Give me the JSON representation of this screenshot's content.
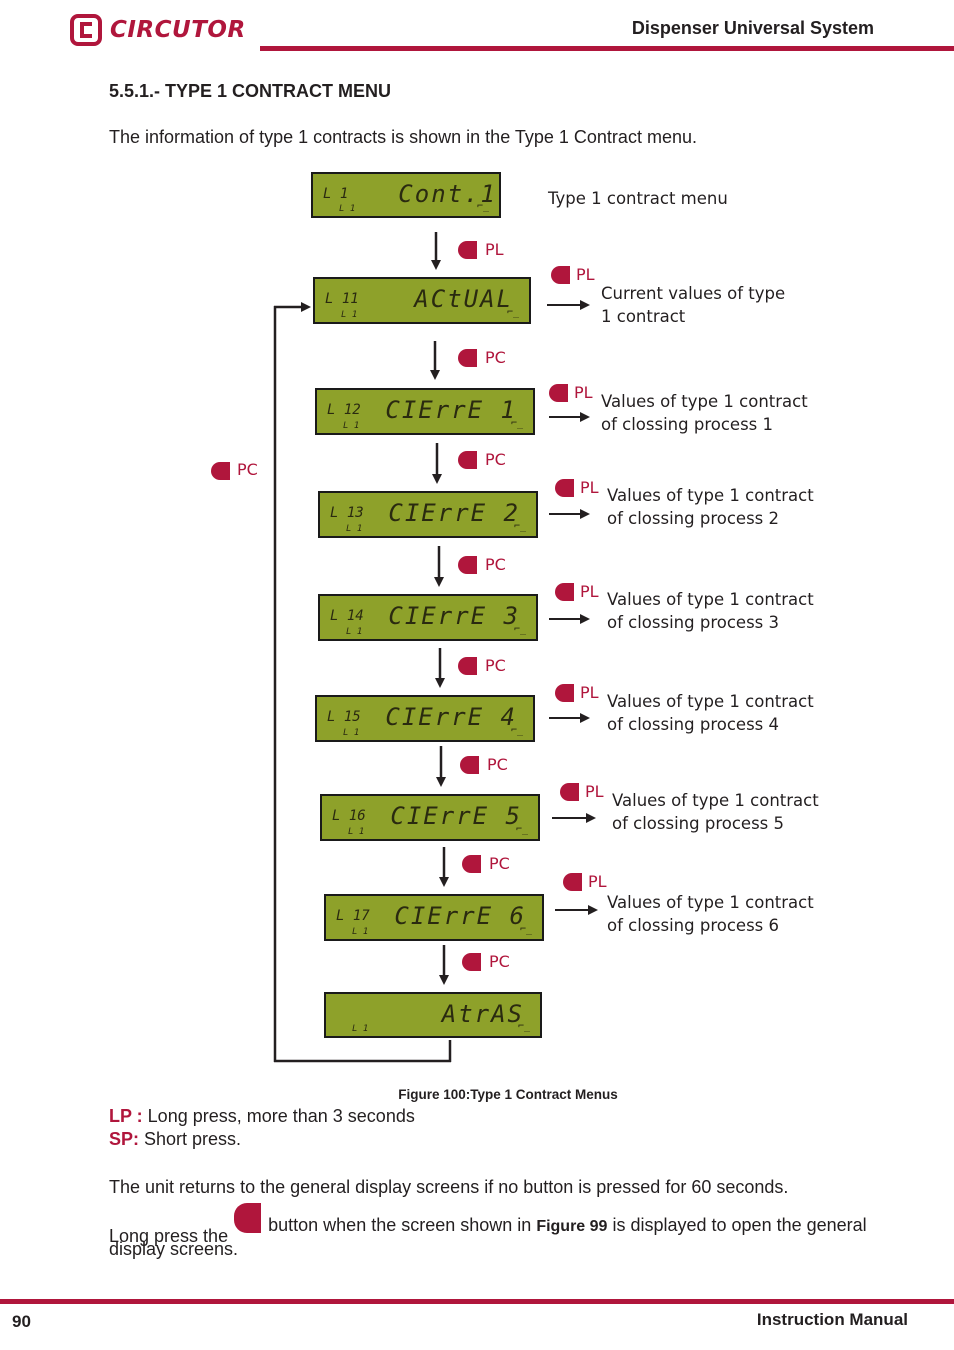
{
  "header": {
    "logo_text": "CIRCUTOR",
    "title": "Dispenser Universal System"
  },
  "section_title": "5.5.1.- TYPE 1 CONTRACT MENU",
  "intro": "The information of type 1 contracts is shown in the Type 1 Contract menu.",
  "screens": [
    {
      "code": "L 1",
      "sub": "L 1",
      "text": "Cont.1",
      "desc_l1": "Type 1 contract menu",
      "desc_l2": "",
      "side_btn": ""
    },
    {
      "code": "L 11",
      "sub": "L 1",
      "text": "ACtUAL",
      "desc_l1": "Current values of type",
      "desc_l2": "1 contract",
      "side_btn": "PL"
    },
    {
      "code": "L 12",
      "sub": "L 1",
      "text": "CIErrE 1",
      "desc_l1": "Values of type 1 contract",
      "desc_l2": "of clossing process 1",
      "side_btn": "PL"
    },
    {
      "code": "L 13",
      "sub": "L 1",
      "text": "CIErrE 2",
      "desc_l1": "Values of type 1 contract",
      "desc_l2": "of clossing process 2",
      "side_btn": "PL"
    },
    {
      "code": "L 14",
      "sub": "L 1",
      "text": "CIErrE 3",
      "desc_l1": "Values of type 1 contract",
      "desc_l2": "of clossing process 3",
      "side_btn": "PL"
    },
    {
      "code": "L 15",
      "sub": "L 1",
      "text": "CIErrE 4",
      "desc_l1": "Values of type 1 contract",
      "desc_l2": "of clossing process 4",
      "side_btn": "PL"
    },
    {
      "code": "L 16",
      "sub": "L 1",
      "text": "CIErrE 5",
      "desc_l1": "Values of type 1 contract",
      "desc_l2": "of clossing process 5",
      "side_btn": "PL"
    },
    {
      "code": "L 17",
      "sub": "L 1",
      "text": "CIErrE 6",
      "desc_l1": "Values of type 1 contract",
      "desc_l2": "of clossing process 6",
      "side_btn": "PL"
    },
    {
      "code": "",
      "sub": "L 1",
      "text": "AtrAS",
      "desc_l1": "",
      "desc_l2": "",
      "side_btn": ""
    }
  ],
  "down_buttons": [
    "PL",
    "PC",
    "PC",
    "PC",
    "PC",
    "PC",
    "PC",
    "PC"
  ],
  "loop_button": "PC",
  "lcd_symbol": "⌐_",
  "caption": "Figure 100:Type 1 Contract Menus",
  "legend": {
    "lp_key": "LP :",
    "lp_text": " Long press, more than 3 seconds",
    "sp_key": "SP:",
    "sp_text": " Short press."
  },
  "para1": "The unit returns to the general display screens if no button is pressed for 60 seconds.",
  "para2_pre": "Long press the",
  "para2_mid": "button when the screen shown in",
  "para2_ref": "Figure 99",
  "para2_post": "is displayed to open the general",
  "para2_line2": "display screens.",
  "footer": {
    "page": "90",
    "right": "Instruction Manual"
  },
  "colors": {
    "accent": "#b0163c",
    "lcd": "#8ea12a"
  }
}
